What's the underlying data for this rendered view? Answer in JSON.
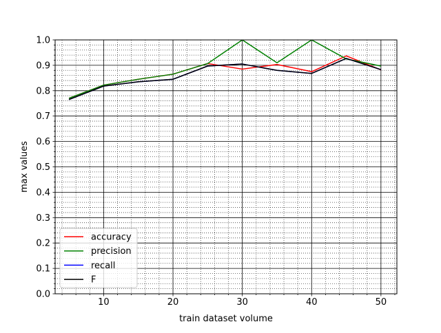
{
  "chart_data": {
    "type": "line",
    "title": "",
    "xlabel": "train dataset volume",
    "ylabel": "max values",
    "xlim": [
      3,
      52.3
    ],
    "ylim": [
      0.0,
      1.0
    ],
    "x_ticks": [
      10,
      20,
      30,
      40,
      50
    ],
    "x_tick_labels": [
      "10",
      "20",
      "30",
      "40",
      "50"
    ],
    "y_ticks": [
      0.0,
      0.1,
      0.2,
      0.3,
      0.4,
      0.5,
      0.6,
      0.7,
      0.8,
      0.9,
      1.0
    ],
    "y_tick_labels": [
      "0.0",
      "0.1",
      "0.2",
      "0.3",
      "0.4",
      "0.5",
      "0.6",
      "0.7",
      "0.8",
      "0.9",
      "1.0"
    ],
    "grid": {
      "major": true,
      "minor": true,
      "major_style": "solid",
      "minor_style": "dotted"
    },
    "legend_position": "lower-left",
    "series": [
      {
        "name": "accuracy",
        "color": "#ff0000",
        "x": [
          5,
          10,
          15,
          20,
          25,
          30,
          35,
          40,
          45,
          50
        ],
        "values": [
          0.77,
          0.822,
          0.845,
          0.865,
          0.907,
          0.885,
          0.903,
          0.875,
          0.937,
          0.882
        ]
      },
      {
        "name": "precision",
        "color": "#008000",
        "x": [
          5,
          10,
          15,
          20,
          25,
          30,
          35,
          40,
          45,
          50
        ],
        "values": [
          0.77,
          0.822,
          0.845,
          0.865,
          0.907,
          1.0,
          0.91,
          1.0,
          0.925,
          0.897
        ]
      },
      {
        "name": "recall",
        "color": "#0000ff",
        "x": [
          5,
          10,
          15,
          20,
          25,
          30,
          35,
          40,
          45,
          50
        ],
        "values": [
          0.765,
          0.818,
          0.835,
          0.845,
          0.897,
          0.905,
          0.88,
          0.868,
          0.927,
          0.883
        ]
      },
      {
        "name": "F",
        "color": "#000000",
        "x": [
          5,
          10,
          15,
          20,
          25,
          30,
          35,
          40,
          45,
          50
        ],
        "values": [
          0.765,
          0.818,
          0.835,
          0.845,
          0.897,
          0.905,
          0.88,
          0.868,
          0.927,
          0.883
        ]
      }
    ]
  }
}
